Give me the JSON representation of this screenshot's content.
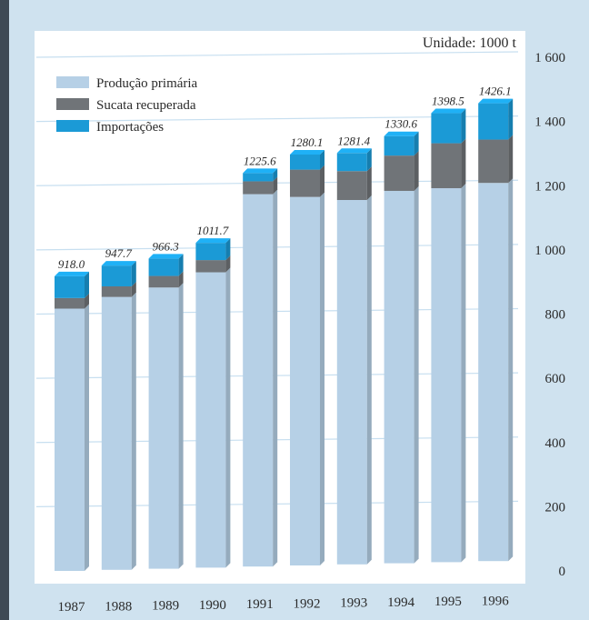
{
  "chart_data": {
    "type": "bar",
    "stacked": true,
    "unit_label": "Unidade: 1000 t",
    "categories": [
      "1987",
      "1988",
      "1989",
      "1990",
      "1991",
      "1992",
      "1993",
      "1994",
      "1995",
      "1996"
    ],
    "series": [
      {
        "name": "Produção primária",
        "color": "#b6d0e6",
        "values": [
          817,
          850,
          876,
          920,
          1160,
          1148,
          1135,
          1160,
          1165,
          1178
        ]
      },
      {
        "name": "Sucata recuperada",
        "color": "#707478",
        "values": [
          33,
          33,
          36,
          38,
          40,
          85,
          90,
          110,
          140,
          135
        ]
      },
      {
        "name": "Importações",
        "color": "#1b9ad6",
        "values": [
          68,
          64.7,
          54.3,
          53.7,
          25.6,
          47.1,
          56.4,
          60.6,
          93.5,
          113.1
        ]
      }
    ],
    "totals": [
      "918.0",
      "947.7",
      "966.3",
      "1011.7",
      "1225.6",
      "1280.1",
      "1281.4",
      "1330.6",
      "1398.5",
      "1426.1"
    ],
    "y_ticks": [
      {
        "value": 0,
        "label": "0"
      },
      {
        "value": 200,
        "label": "200"
      },
      {
        "value": 400,
        "label": "400"
      },
      {
        "value": 600,
        "label": "600"
      },
      {
        "value": 800,
        "label": "800"
      },
      {
        "value": 1000,
        "label": "1 000"
      },
      {
        "value": 1200,
        "label": "1 200"
      },
      {
        "value": 1400,
        "label": "1 400"
      },
      {
        "value": 1600,
        "label": "1 600"
      }
    ],
    "ylim": [
      0,
      1600
    ],
    "y_axis_side": "right",
    "legend_position": "top-left",
    "grid": true,
    "plot_background": "#ffffff",
    "grid_color": "#c7dff0"
  }
}
